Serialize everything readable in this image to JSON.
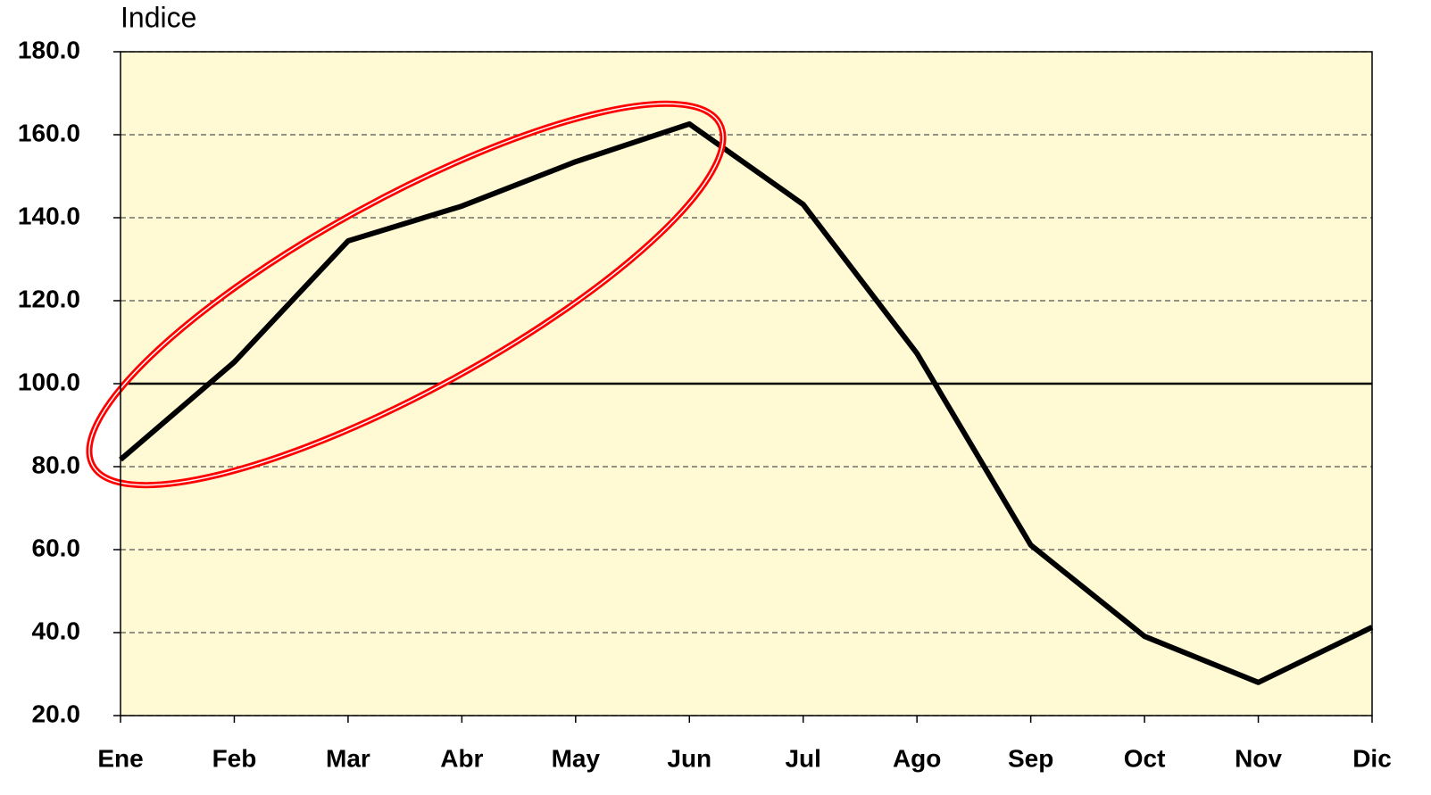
{
  "chart_data": {
    "type": "line",
    "y_axis_label": "Indice",
    "categories": [
      "Ene",
      "Feb",
      "Mar",
      "Abr",
      "May",
      "Jun",
      "Jul",
      "Ago",
      "Sep",
      "Oct",
      "Nov",
      "Dic"
    ],
    "series": [
      {
        "color": "#000000",
        "values": [
          81.7,
          105.2,
          134.4,
          142.8,
          153.5,
          162.6,
          143.2,
          107.3,
          61.1,
          39.1,
          28.0,
          41.3
        ]
      }
    ],
    "ylim": [
      20,
      180
    ],
    "yticks": [
      {
        "value": 20,
        "label": "20.0"
      },
      {
        "value": 40,
        "label": "40.0"
      },
      {
        "value": 60,
        "label": "60.0"
      },
      {
        "value": 80,
        "label": "80.0"
      },
      {
        "value": 100,
        "label": "100.0"
      },
      {
        "value": 120,
        "label": "120.0"
      },
      {
        "value": 140,
        "label": "140.0"
      },
      {
        "value": 160,
        "label": "160.0"
      },
      {
        "value": 180,
        "label": "180.0"
      }
    ],
    "reference_line": 100,
    "grid": true,
    "plot_background": "#fff9d4"
  }
}
